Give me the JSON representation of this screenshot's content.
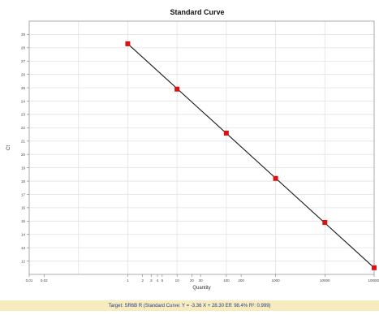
{
  "chart_data": {
    "type": "scatter",
    "title": "Standard Curve",
    "xlabel": "Quantity",
    "ylabel": "Ct",
    "xscale": "log",
    "xlim": [
      0.01,
      100000
    ],
    "ylim": [
      11,
      30
    ],
    "grid": true,
    "x_major_ticks": [
      0.01,
      0.1,
      1,
      10,
      100,
      1000,
      10000,
      100000
    ],
    "x_tick_labels": [
      {
        "value": 0.01,
        "label": "0.01"
      },
      {
        "value": 0.02,
        "label": "0.02"
      },
      {
        "value": 1,
        "label": "1"
      },
      {
        "value": 2,
        "label": "2"
      },
      {
        "value": 3,
        "label": "3"
      },
      {
        "value": 4,
        "label": "4"
      },
      {
        "value": 5,
        "label": "5"
      },
      {
        "value": 10,
        "label": "10"
      },
      {
        "value": 20,
        "label": "20"
      },
      {
        "value": 30,
        "label": "30"
      },
      {
        "value": 100,
        "label": "100"
      },
      {
        "value": 200,
        "label": "200"
      },
      {
        "value": 1000,
        "label": "1000"
      },
      {
        "value": 10000,
        "label": "10000"
      },
      {
        "value": 100000,
        "label": "100000"
      }
    ],
    "y_ticks": [
      12,
      13,
      14,
      15,
      16,
      17,
      18,
      19,
      20,
      21,
      22,
      23,
      24,
      25,
      26,
      27,
      28,
      29
    ],
    "points": [
      {
        "x": 1,
        "y": 28.3
      },
      {
        "x": 10,
        "y": 24.9
      },
      {
        "x": 100,
        "y": 21.6
      },
      {
        "x": 1000,
        "y": 18.2
      },
      {
        "x": 10000,
        "y": 14.9
      },
      {
        "x": 100000,
        "y": 11.5
      }
    ],
    "fit_line": {
      "x_start": 1,
      "x_end": 100000,
      "slope": -3.36,
      "intercept": 28.3
    },
    "colors": {
      "points": "#dd1111",
      "fit_line": "#1a1a1a",
      "grid": "#e2e2e2",
      "axis": "#999999"
    }
  },
  "footer": {
    "text": "Target: SR6B R  (Standard Curve: Y = -3.36 X + 28.30  Eff: 98.4%  R²: 0.999)"
  }
}
